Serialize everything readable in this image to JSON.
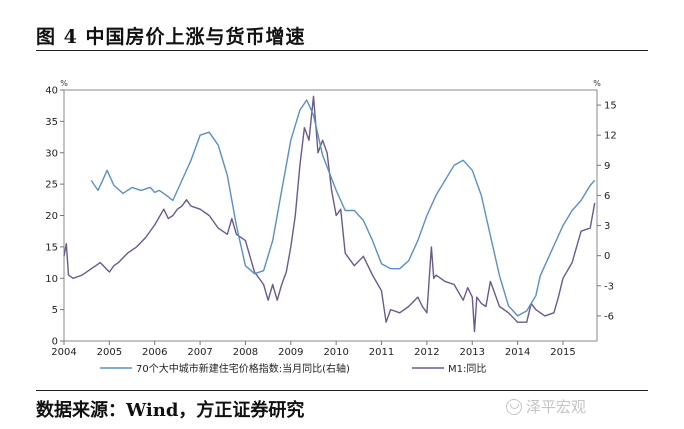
{
  "figure": {
    "title": "图 4  中国房价上涨与货币增速",
    "source": "数据来源：Wind，方正证券研究",
    "watermark": "泽平宏观",
    "watermark_icon": "wechat-icon"
  },
  "chart_data": {
    "type": "line",
    "title": "",
    "xlabel": "",
    "left_axis": {
      "unit": "%",
      "ylim": [
        0,
        40
      ],
      "ticks": [
        0,
        5,
        10,
        15,
        20,
        25,
        30,
        35,
        40
      ]
    },
    "right_axis": {
      "unit": "%",
      "ylim": [
        -8.5,
        16.5
      ],
      "ticks": [
        -6,
        -3,
        0,
        3,
        6,
        9,
        12,
        15
      ]
    },
    "xlim": [
      2004,
      2015.75
    ],
    "xticks": [
      2004,
      2005,
      2006,
      2007,
      2008,
      2009,
      2010,
      2011,
      2012,
      2013,
      2014,
      2015
    ],
    "grid": false,
    "legend_position": "bottom",
    "colors": {
      "m1": "#6a5a8c",
      "house": "#5b8fc4"
    },
    "series": [
      {
        "name": "M1:同比",
        "axis": "left",
        "x": [
          2004.0,
          2004.05,
          2004.1,
          2004.2,
          2004.4,
          2004.6,
          2004.8,
          2005.0,
          2005.1,
          2005.2,
          2005.4,
          2005.6,
          2005.8,
          2006.0,
          2006.2,
          2006.3,
          2006.4,
          2006.5,
          2006.6,
          2006.7,
          2006.8,
          2007.0,
          2007.2,
          2007.4,
          2007.6,
          2007.7,
          2007.8,
          2008.0,
          2008.2,
          2008.4,
          2008.5,
          2008.6,
          2008.7,
          2008.8,
          2008.9,
          2009.0,
          2009.1,
          2009.2,
          2009.3,
          2009.4,
          2009.5,
          2009.6,
          2009.7,
          2009.8,
          2009.9,
          2010.0,
          2010.1,
          2010.2,
          2010.4,
          2010.6,
          2010.8,
          2011.0,
          2011.1,
          2011.2,
          2011.4,
          2011.6,
          2011.8,
          2011.9,
          2012.0,
          2012.1,
          2012.15,
          2012.2,
          2012.4,
          2012.6,
          2012.8,
          2012.9,
          2013.0,
          2013.05,
          2013.1,
          2013.2,
          2013.3,
          2013.4,
          2013.6,
          2013.8,
          2014.0,
          2014.2,
          2014.3,
          2014.4,
          2014.6,
          2014.8,
          2014.9,
          2015.0,
          2015.2,
          2015.4,
          2015.6,
          2015.7
        ],
        "values": [
          13.5,
          15.5,
          10.5,
          10.0,
          10.5,
          11.5,
          12.5,
          11.0,
          12.0,
          12.5,
          14.0,
          15.0,
          16.5,
          18.5,
          21.0,
          19.5,
          20.0,
          21.0,
          21.5,
          22.5,
          21.5,
          21.0,
          20.0,
          18.0,
          17.0,
          19.5,
          17.0,
          16.0,
          11.0,
          9.0,
          6.5,
          9.0,
          6.5,
          9.0,
          11.0,
          15.0,
          20.0,
          28.0,
          34.0,
          32.0,
          39.0,
          30.0,
          32.0,
          30.0,
          24.0,
          20.0,
          21.0,
          14.0,
          12.0,
          13.5,
          10.5,
          8.0,
          3.0,
          5.0,
          4.5,
          5.5,
          7.0,
          5.5,
          4.5,
          15.0,
          10.0,
          10.5,
          9.5,
          9.0,
          6.5,
          8.5,
          7.0,
          1.5,
          7.0,
          6.0,
          5.5,
          9.5,
          5.5,
          4.5,
          3.0,
          3.0,
          6.0,
          5.0,
          4.0,
          4.5,
          7.0,
          10.0,
          12.5,
          17.5,
          18.0,
          22.0
        ]
      },
      {
        "name": "70个大中城市新建住宅价格指数:当月同比(右轴)",
        "axis": "right",
        "x": [
          2004.6,
          2004.75,
          2004.85,
          2004.95,
          2005.1,
          2005.3,
          2005.5,
          2005.7,
          2005.9,
          2006.0,
          2006.1,
          2006.2,
          2006.4,
          2006.6,
          2006.8,
          2007.0,
          2007.2,
          2007.4,
          2007.6,
          2007.8,
          2008.0,
          2008.2,
          2008.4,
          2008.6,
          2008.8,
          2009.0,
          2009.2,
          2009.35,
          2009.5,
          2009.7,
          2010.0,
          2010.2,
          2010.4,
          2010.6,
          2010.8,
          2011.0,
          2011.2,
          2011.4,
          2011.6,
          2011.8,
          2012.0,
          2012.2,
          2012.4,
          2012.6,
          2012.8,
          2013.0,
          2013.2,
          2013.4,
          2013.6,
          2013.8,
          2014.0,
          2014.2,
          2014.4,
          2014.5,
          2014.6,
          2014.8,
          2015.0,
          2015.2,
          2015.4,
          2015.6,
          2015.7
        ],
        "values": [
          7.5,
          6.5,
          7.5,
          8.5,
          7.0,
          6.2,
          6.8,
          6.5,
          6.8,
          6.3,
          6.5,
          6.2,
          5.5,
          7.5,
          9.5,
          12.0,
          12.3,
          11.0,
          8.0,
          3.0,
          -1.0,
          -1.8,
          -1.5,
          1.5,
          6.5,
          11.5,
          14.5,
          15.5,
          14.0,
          10.0,
          6.5,
          4.5,
          4.5,
          3.5,
          1.5,
          -0.8,
          -1.3,
          -1.3,
          -0.5,
          1.5,
          4.0,
          6.0,
          7.5,
          9.0,
          9.5,
          8.5,
          6.0,
          2.0,
          -2.0,
          -5.0,
          -6.0,
          -5.5,
          -4.0,
          -2.0,
          -1.0,
          1.0,
          3.0,
          4.5,
          5.5,
          7.0,
          7.5
        ]
      }
    ]
  }
}
